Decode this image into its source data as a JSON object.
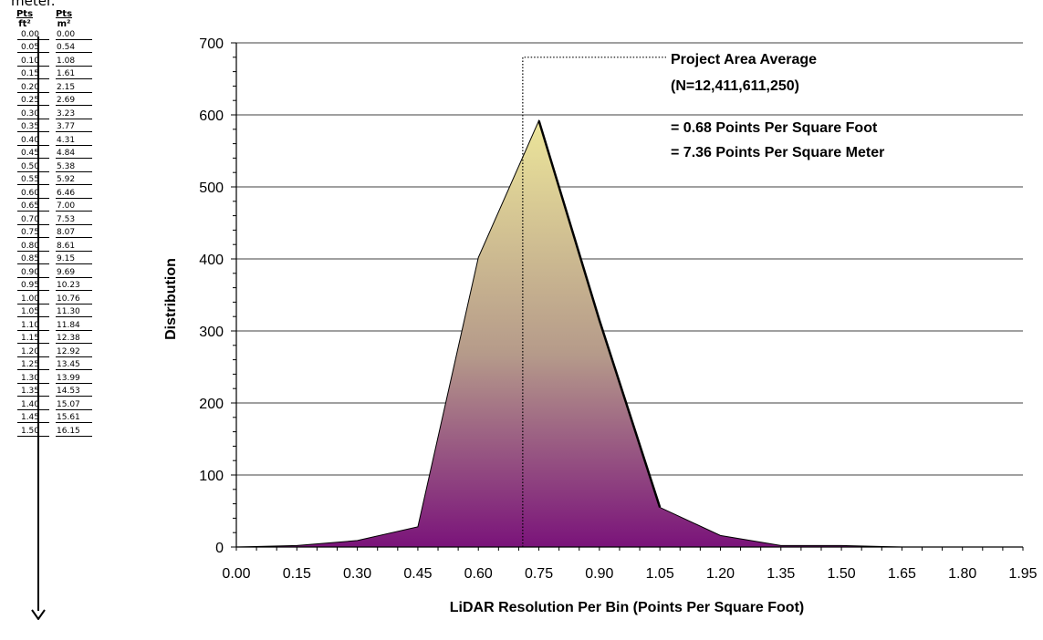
{
  "conversion_table": {
    "title": "meter.",
    "header_ft": [
      "Pts",
      "ft²"
    ],
    "header_m": [
      "Pts",
      "m²"
    ],
    "rows": [
      [
        "0.00",
        "0.00"
      ],
      [
        "0.05",
        "0.54"
      ],
      [
        "0.10",
        "1.08"
      ],
      [
        "0.15",
        "1.61"
      ],
      [
        "0.20",
        "2.15"
      ],
      [
        "0.25",
        "2.69"
      ],
      [
        "0.30",
        "3.23"
      ],
      [
        "0.35",
        "3.77"
      ],
      [
        "0.40",
        "4.31"
      ],
      [
        "0.45",
        "4.84"
      ],
      [
        "0.50",
        "5.38"
      ],
      [
        "0.55",
        "5.92"
      ],
      [
        "0.60",
        "6.46"
      ],
      [
        "0.65",
        "7.00"
      ],
      [
        "0.70",
        "7.53"
      ],
      [
        "0.75",
        "8.07"
      ],
      [
        "0.80",
        "8.61"
      ],
      [
        "0.85",
        "9.15"
      ],
      [
        "0.90",
        "9.69"
      ],
      [
        "0.95",
        "10.23"
      ],
      [
        "1.00",
        "10.76"
      ],
      [
        "1.05",
        "11.30"
      ],
      [
        "1.10",
        "11.84"
      ],
      [
        "1.15",
        "12.38"
      ],
      [
        "1.20",
        "12.92"
      ],
      [
        "1.25",
        "13.45"
      ],
      [
        "1.30",
        "13.99"
      ],
      [
        "1.35",
        "14.53"
      ],
      [
        "1.40",
        "15.07"
      ],
      [
        "1.45",
        "15.61"
      ],
      [
        "1.50",
        "16.15"
      ]
    ]
  },
  "chart_data": {
    "type": "area",
    "xlabel": "LiDAR Resolution Per Bin (Points Per Square Foot)",
    "ylabel": "Distribution",
    "x_ticks": [
      "0.00",
      "0.15",
      "0.30",
      "0.45",
      "0.60",
      "0.75",
      "0.90",
      "1.05",
      "1.20",
      "1.35",
      "1.50",
      "1.65",
      "1.80",
      "1.95"
    ],
    "y_ticks": [
      "0",
      "100",
      "200",
      "300",
      "400",
      "500",
      "600",
      "700"
    ],
    "xlim": [
      0,
      1.95
    ],
    "ylim": [
      0,
      700
    ],
    "grid": "horizontal major lines at 100 intervals",
    "series": [
      {
        "x": [
          0.0,
          0.15,
          0.3,
          0.45,
          0.6,
          0.75,
          0.9,
          1.05,
          1.2,
          1.35,
          1.5,
          1.65,
          1.8,
          1.95
        ],
        "values": [
          0,
          2,
          9,
          28,
          402,
          592,
          315,
          55,
          16,
          2,
          2,
          0,
          0,
          0
        ]
      }
    ],
    "fill_colors": {
      "top": "#ece59a",
      "middle": "#b59a8a",
      "bottom": "#7a137a"
    },
    "average_line": {
      "x": 0.71,
      "top_y": 680
    },
    "annotations": {
      "line1": "Project Area Average",
      "line2": "(N=12,411,611,250)",
      "line3": "= 0.68 Points Per Square Foot",
      "line4": "= 7.36 Points Per Square Meter"
    }
  }
}
